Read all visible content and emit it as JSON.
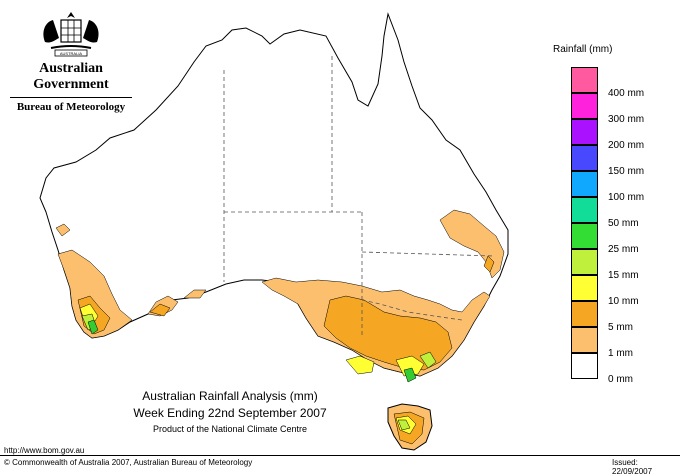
{
  "branding": {
    "crest_text": "AUSTRALIA",
    "government": "Australian Government",
    "bureau": "Bureau of Meteorology"
  },
  "map": {
    "title": "Australian Rainfall Analysis (mm)",
    "period": "Week Ending 22nd September 2007",
    "product": "Product of the National Climate Centre",
    "colors": {
      "land": "#ffffff",
      "outline": "#000000",
      "state_border": "#555555",
      "rain_1": "#fbbf6e",
      "rain_5": "#f5a623",
      "rain_10": "#ffff33",
      "rain_15": "#bef03c",
      "rain_25": "#33cc33"
    }
  },
  "legend": {
    "title": "Rainfall (mm)",
    "bins": [
      {
        "label": "",
        "color": "#ff5aa0"
      },
      {
        "label": "400 mm",
        "color": "#ff22dd"
      },
      {
        "label": "300 mm",
        "color": "#aa11ff"
      },
      {
        "label": "200 mm",
        "color": "#4848ff"
      },
      {
        "label": "150 mm",
        "color": "#10a8ff"
      },
      {
        "label": "100 mm",
        "color": "#11dd99"
      },
      {
        "label": "50 mm",
        "color": "#33dd33"
      },
      {
        "label": "25 mm",
        "color": "#bef03c"
      },
      {
        "label": "15 mm",
        "color": "#ffff33"
      },
      {
        "label": "10 mm",
        "color": "#f5a623"
      },
      {
        "label": "5 mm",
        "color": "#fbbf6e"
      },
      {
        "label": "1 mm",
        "color": "#ffffff"
      }
    ],
    "bottom_label": "0 mm"
  },
  "footer": {
    "url": "http://www.bom.gov.au",
    "copyright": "© Commonwealth of Australia 2007, Australian Bureau of Meteorology",
    "issued": "Issued: 22/09/2007"
  }
}
